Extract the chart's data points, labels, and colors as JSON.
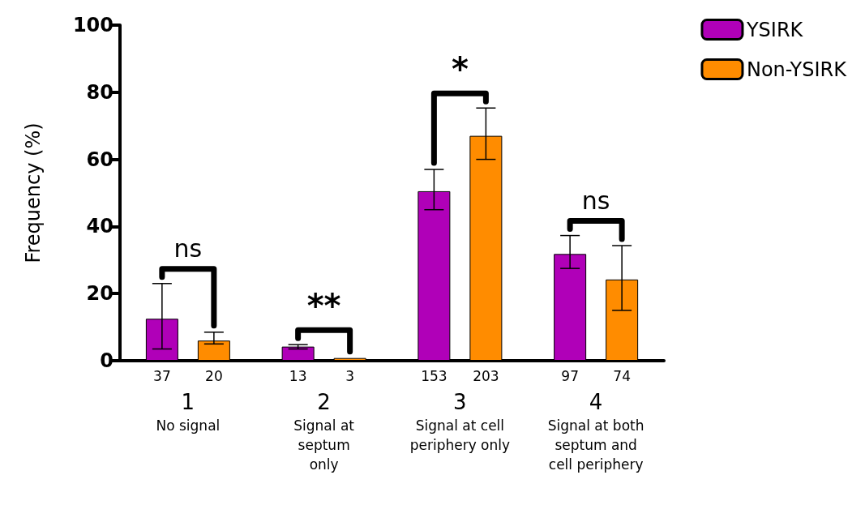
{
  "chart_data": {
    "type": "bar",
    "ylabel": "Frequency (%)",
    "categories": [
      "1\nNo signal",
      "2\nSignal at\nseptum\nonly",
      "3\nSignal at cell\nperiphery only",
      "4\nSignal at both\nseptum and\ncell periphery"
    ],
    "series": [
      {
        "name": "YSIRK",
        "color": "#b000b8",
        "values": [
          12.5,
          4.2,
          50.5,
          31.8
        ],
        "errors": [
          [
            3.5,
            23
          ],
          [
            3.5,
            4.8
          ],
          [
            45,
            57
          ],
          [
            27.5,
            37.3
          ]
        ]
      },
      {
        "name": "Non-YSIRK",
        "color": "#ff8c00",
        "values": [
          6,
          0.8,
          67,
          24.2
        ],
        "errors": [
          [
            5,
            8.5
          ],
          null,
          [
            60,
            75.3
          ],
          [
            15,
            34.3
          ]
        ]
      }
    ],
    "ylim": [
      0,
      100
    ],
    "yticks": [
      0,
      20,
      40,
      60,
      80,
      100
    ],
    "grid": false,
    "legend": "top right",
    "annotations": [
      "37",
      "20",
      "13",
      "3",
      "153",
      "203",
      "97",
      "74",
      "ns",
      "**",
      "*",
      "ns"
    ]
  }
}
